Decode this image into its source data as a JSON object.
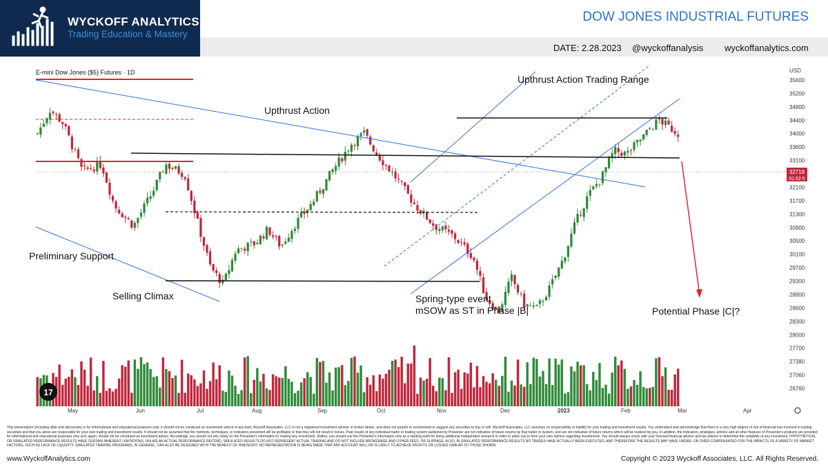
{
  "brand": {
    "name": "WYCKOFF ANALYTICS",
    "tagline": "Trading Education & Mastery",
    "navy": "#0f2a4e",
    "accent": "#3d8fd6"
  },
  "header": {
    "title": "DOW JONES INDUSTRIAL FUTURES",
    "date": "DATE: 2.28.2023",
    "handle": "@wyckoffanalysis",
    "site": "wyckoffanalytics.com"
  },
  "chart_data": {
    "type": "candlestick",
    "title": "E-mini Dow Jones ($5) Futures · 1D",
    "currency_label": "USD",
    "ylim": [
      26500,
      35800
    ],
    "y_ticks": [
      35600,
      35200,
      34800,
      34400,
      34000,
      33600,
      33100,
      32700,
      32100,
      31700,
      31300,
      30900,
      30500,
      30100,
      29700,
      29300,
      28900,
      28600,
      28300,
      28000,
      27700,
      27380,
      27060,
      26760
    ],
    "x_ticks": [
      "May",
      "Jun",
      "Jul",
      "Aug",
      "Sep",
      "Oct",
      "Nov",
      "Dec",
      "2023",
      "Feb",
      "Mar",
      "Apr"
    ],
    "last_price": {
      "value": "32718",
      "countdown": "01:52:5"
    },
    "colors": {
      "up": "#2f8b3a",
      "down": "#c0273c",
      "channel": "#2f6fd6",
      "level": "#111111",
      "red_level": "#e0242f",
      "arrow": "#e0242f"
    },
    "price_path": [
      [
        0.0,
        34200
      ],
      [
        0.02,
        34900
      ],
      [
        0.04,
        34500
      ],
      [
        0.07,
        33100
      ],
      [
        0.1,
        33300
      ],
      [
        0.12,
        32100
      ],
      [
        0.15,
        31500
      ],
      [
        0.18,
        32500
      ],
      [
        0.2,
        33300
      ],
      [
        0.23,
        33000
      ],
      [
        0.25,
        31600
      ],
      [
        0.27,
        30300
      ],
      [
        0.29,
        29800
      ],
      [
        0.31,
        30800
      ],
      [
        0.34,
        31000
      ],
      [
        0.36,
        31400
      ],
      [
        0.38,
        30900
      ],
      [
        0.4,
        31500
      ],
      [
        0.43,
        32200
      ],
      [
        0.46,
        33100
      ],
      [
        0.49,
        33900
      ],
      [
        0.51,
        34200
      ],
      [
        0.53,
        33600
      ],
      [
        0.56,
        32900
      ],
      [
        0.59,
        32100
      ],
      [
        0.62,
        31500
      ],
      [
        0.65,
        31200
      ],
      [
        0.68,
        30600
      ],
      [
        0.7,
        29400
      ],
      [
        0.72,
        29000
      ],
      [
        0.74,
        30000
      ],
      [
        0.76,
        29200
      ],
      [
        0.78,
        29100
      ],
      [
        0.8,
        29700
      ],
      [
        0.82,
        30500
      ],
      [
        0.84,
        31600
      ],
      [
        0.86,
        32400
      ],
      [
        0.88,
        32900
      ],
      [
        0.9,
        33700
      ],
      [
        0.92,
        33600
      ],
      [
        0.94,
        34000
      ],
      [
        0.96,
        34400
      ],
      [
        0.97,
        34600
      ],
      [
        1.0,
        34200
      ]
    ],
    "annotations": {
      "preliminary_support": "Preliminary Support",
      "selling_climax": "Selling Climax",
      "upthrust_action": "Upthrust Action",
      "utar": "Upthrust Action Trading Range",
      "spring_1": "Spring-type event",
      "spring_2": "mSOW as ST in Phase |B|",
      "phase_c": "Potential Phase |C|?"
    }
  },
  "disclaimer": "This presentation (including slide and discussion) is for informational and educational purposes only; it should not be construed as investment advice of any kind. Wyckoff Associates, LLC is not a registered investment advisor or broker-dealer, and does not purport to recommend or suggest any securities to buy or sell. Wyckoff Associates, LLC assumes no responsibility or liability for your trading and investment results. You understand and acknowledge that there is a very high degree of risk of financial loss involved in trading securities and that you alone are responsible for your own trading and investment results. It should not be assumed that the methods, techniques, or indicators presented will be profitable or that they will not result in losses. Past results of any individual trader or trading system published by Presenter are not indicative of future returns by that trader or system, and are not indicative of future returns which will be realized by you. In addition, the indicators, strategies, articles and all other features of Presenter's products are provided for informational and educational purposes only and, again, should not be construed as investment advice. Accordingly, you should not rely solely on the Presenter's information in making any investment. Rather, you should use the Presenter's information only as a starting point for doing additional independent research in order to allow you to form your own opinion regarding investments. You should always check with your licensed financial advisor and tax advisor to determine the suitability of any investment. HYPOTHETICAL OR SIMULATED PERFORMANCE RESULTS HAVE CERTAIN INHERENT LIMITATIONS. UNLIKE AN ACTUAL PERFORMANCE RECORD, SIMULATED RESULTS DO NOT REPRESENT ACTUAL TRADING AND DO NOT INCLUDE BROKERAGE AND OTHER FEES, OR SLIPPAGE. ALSO, IN SIMULATED PERFORMANCE RESULTS NO TRADES HAVE ACTUALLY BEEN EXECUTED, AND THEREFORE THE RESULTS MAY HAVE UNDER- OR OVER-COMPENSATED FOR THE IMPACTS OF A VARIETY OF MARKET FACTORS, SUCH AS LACK OF LIQUIDITY. SIMULATED TRADING PROGRAMS, IN GENERAL, CAN ALSO BE DESIGNED WITH THE BENEFIT OF HINDSIGHT. NO REPRESENTATION IS BEING MADE THAT ANY ACCOUNT WILL OR IS LIKELY TO ACHIEVE PROFITS OR LOSSES SIMILAR TO THOSE SHOWN.",
  "footer": {
    "left": "www.WyckoffAnalytics.com",
    "right": "Copyright © 2023 Wyckoff Associates, LLC. All Rights Reserved."
  }
}
